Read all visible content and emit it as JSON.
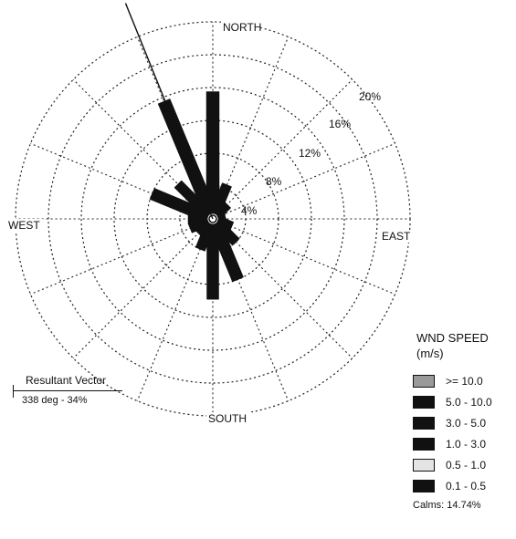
{
  "chart_data": {
    "type": "wind-rose",
    "directions": [
      "N",
      "NNE",
      "NE",
      "ENE",
      "E",
      "ESE",
      "SE",
      "SSE",
      "S",
      "SSW",
      "SW",
      "WSW",
      "W",
      "WNW",
      "NW",
      "NNW"
    ],
    "values_percent": [
      15.5,
      4.5,
      2.5,
      1.5,
      1.5,
      2.5,
      4.0,
      8.0,
      9.8,
      4.0,
      2.5,
      3.0,
      3.0,
      8.0,
      6.0,
      15.5
    ],
    "ring_labels": [
      "4%",
      "8%",
      "12%",
      "16%",
      "20%"
    ],
    "ring_values": [
      4,
      8,
      12,
      16,
      20
    ],
    "direction_labels": {
      "north": "NORTH",
      "east": "EAST",
      "south": "SOUTH",
      "west": "WEST"
    },
    "resultant_vector": {
      "title": "Resultant Vector",
      "value": "338 deg - 34%",
      "direction_deg": 338
    }
  },
  "legend": {
    "title_line1": "WND SPEED",
    "title_line2": "(m/s)",
    "items": [
      {
        "label": ">= 10.0",
        "color": "#9a9a9a"
      },
      {
        "label": "5.0 - 10.0",
        "color": "#111111"
      },
      {
        "label": "3.0 - 5.0",
        "color": "#111111"
      },
      {
        "label": "1.0 - 3.0",
        "color": "#111111"
      },
      {
        "label": "0.5 - 1.0",
        "color": "#e4e4e4"
      },
      {
        "label": "0.1 - 0.5",
        "color": "#111111"
      }
    ],
    "calms": "Calms: 14.74%"
  }
}
